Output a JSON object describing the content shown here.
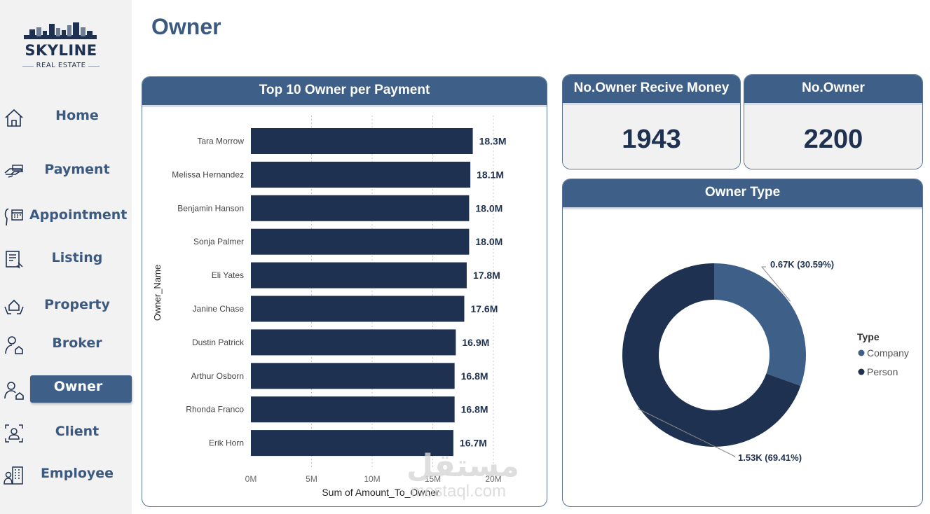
{
  "logo": {
    "title": "SKYLINE",
    "subtitle": "REAL ESTATE"
  },
  "nav": [
    {
      "label": "Home",
      "icon": "home-icon"
    },
    {
      "label": "Payment",
      "icon": "payment-hand-icon"
    },
    {
      "label": "Appointment",
      "icon": "calendar-head-icon"
    },
    {
      "label": "Listing",
      "icon": "listing-doc-icon"
    },
    {
      "label": "Property",
      "icon": "property-hands-icon"
    },
    {
      "label": "Broker",
      "icon": "broker-person-icon"
    },
    {
      "label": "Owner",
      "icon": "owner-person-house-icon"
    },
    {
      "label": "Client",
      "icon": "client-frame-icon"
    },
    {
      "label": "Employee",
      "icon": "employee-building-icon"
    }
  ],
  "active_nav": "Owner",
  "page": {
    "title": "Owner"
  },
  "bar_card": {
    "title": "Top 10 Owner per Payment"
  },
  "kpi_money": {
    "title": "No.Owner Recive Money",
    "value": "1943"
  },
  "kpi_owner": {
    "title": "No.Owner",
    "value": "2200"
  },
  "donut_card": {
    "title": "Owner Type"
  },
  "watermark": {
    "arabic": "مستقل",
    "latin": "mostaql.com"
  },
  "colors": {
    "dark": "#1f3150",
    "accent": "#3e5f88",
    "company": "#3e5f88",
    "person": "#1f3150"
  },
  "chart_data": [
    {
      "type": "bar",
      "orientation": "horizontal",
      "title": "Top 10 Owner per Payment",
      "xlabel": "Sum of Amount_To_Owner",
      "ylabel": "Owner_Name",
      "xlim": [
        0,
        20000000
      ],
      "xticks": [
        "0M",
        "5M",
        "10M",
        "15M",
        "20M"
      ],
      "categories": [
        "Tara Morrow",
        "Melissa Hernandez",
        "Benjamin Hanson",
        "Sonja Palmer",
        "Eli Yates",
        "Janine Chase",
        "Dustin Patrick",
        "Arthur Osborn",
        "Rhonda Franco",
        "Erik Horn"
      ],
      "values": [
        18300000,
        18100000,
        18000000,
        18000000,
        17800000,
        17600000,
        16900000,
        16800000,
        16800000,
        16700000
      ],
      "labels": [
        "18.3M",
        "18.1M",
        "18.0M",
        "18.0M",
        "17.8M",
        "17.6M",
        "16.9M",
        "16.8M",
        "16.8M",
        "16.7M"
      ]
    },
    {
      "type": "pie",
      "variant": "donut",
      "title": "Owner Type",
      "legend_title": "Type",
      "slices": [
        {
          "name": "Company",
          "value": 0.67,
          "percent": 30.59,
          "label": "0.67K (30.59%)",
          "color": "#3e5f88"
        },
        {
          "name": "Person",
          "value": 1.53,
          "percent": 69.41,
          "label": "1.53K (69.41%)",
          "color": "#1f3150"
        }
      ]
    }
  ]
}
